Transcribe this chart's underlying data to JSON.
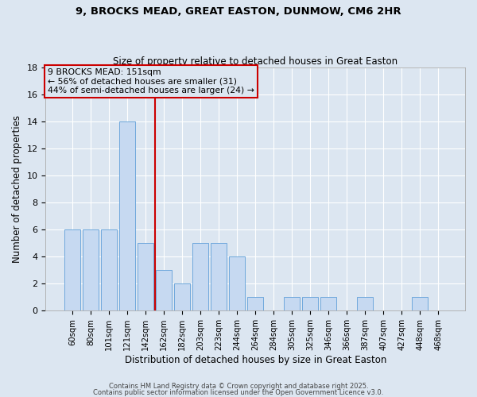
{
  "title": "9, BROCKS MEAD, GREAT EASTON, DUNMOW, CM6 2HR",
  "subtitle": "Size of property relative to detached houses in Great Easton",
  "xlabel": "Distribution of detached houses by size in Great Easton",
  "ylabel": "Number of detached properties",
  "categories": [
    "60sqm",
    "80sqm",
    "101sqm",
    "121sqm",
    "142sqm",
    "162sqm",
    "182sqm",
    "203sqm",
    "223sqm",
    "244sqm",
    "264sqm",
    "284sqm",
    "305sqm",
    "325sqm",
    "346sqm",
    "366sqm",
    "387sqm",
    "407sqm",
    "427sqm",
    "448sqm",
    "468sqm"
  ],
  "values": [
    6,
    6,
    6,
    14,
    5,
    3,
    2,
    5,
    5,
    4,
    1,
    0,
    1,
    1,
    1,
    0,
    1,
    0,
    0,
    1,
    0
  ],
  "bar_color": "#c6d9f1",
  "bar_edge_color": "#6fa8dc",
  "vline_x_index": 4,
  "vline_color": "#cc0000",
  "annotation_text": "9 BROCKS MEAD: 151sqm\n← 56% of detached houses are smaller (31)\n44% of semi-detached houses are larger (24) →",
  "annotation_box_color": "#cc0000",
  "background_color": "#dce6f1",
  "ylim": [
    0,
    18
  ],
  "yticks": [
    0,
    2,
    4,
    6,
    8,
    10,
    12,
    14,
    16,
    18
  ],
  "footer_line1": "Contains HM Land Registry data © Crown copyright and database right 2025.",
  "footer_line2": "Contains public sector information licensed under the Open Government Licence v3.0."
}
